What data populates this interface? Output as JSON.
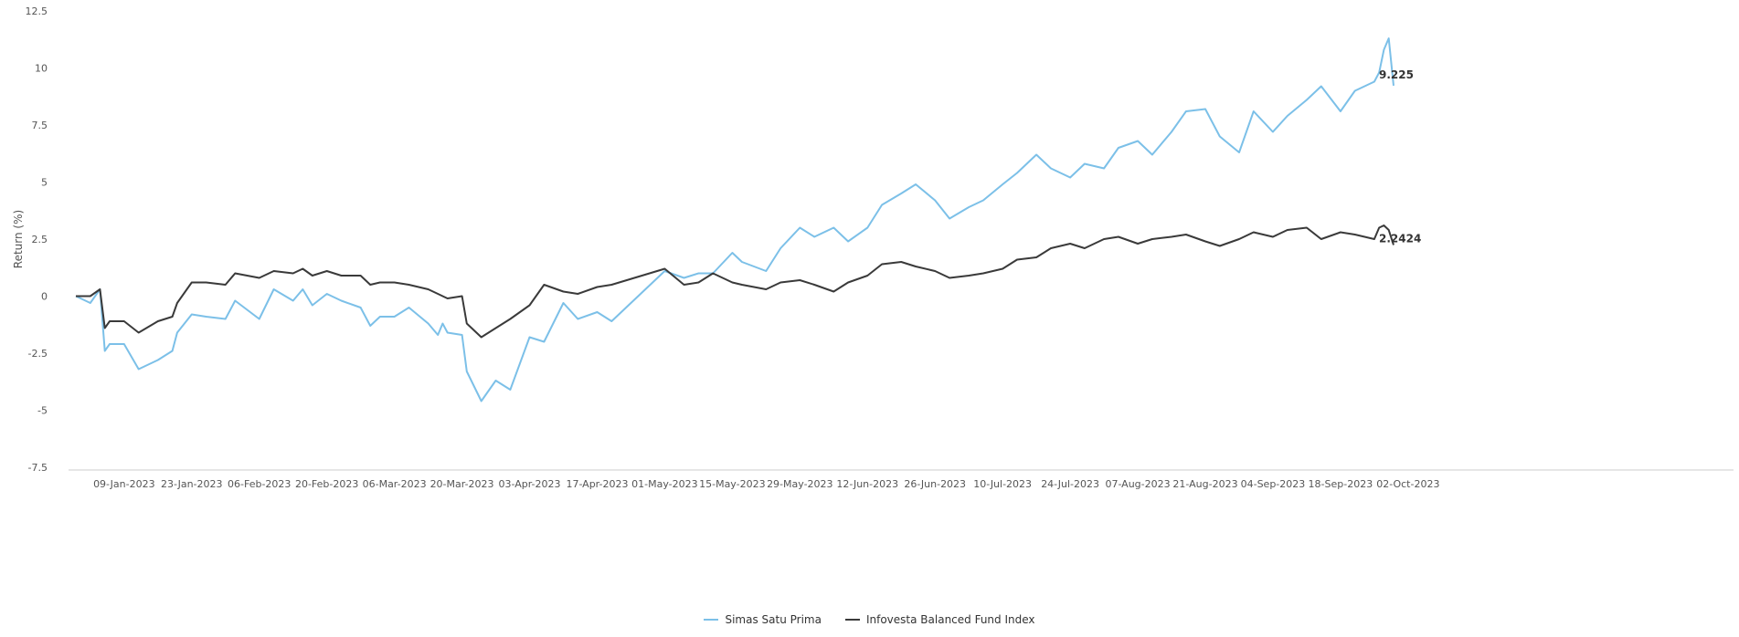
{
  "chart_data": {
    "type": "line",
    "title": "",
    "ylabel": "Return (%)",
    "xlabel": "",
    "ylim": [
      -7.5,
      12.5
    ],
    "yticks": [
      12.5,
      10,
      7.5,
      5,
      2.5,
      0,
      -2.5,
      -5,
      -7.5
    ],
    "ytick_labels": [
      "12.5",
      "10",
      "7.5",
      "5",
      "2.5",
      "0",
      "-2.5",
      "-5",
      "-7.5"
    ],
    "x_tick_labels": [
      "09-Jan-2023",
      "23-Jan-2023",
      "06-Feb-2023",
      "20-Feb-2023",
      "06-Mar-2023",
      "20-Mar-2023",
      "03-Apr-2023",
      "17-Apr-2023",
      "01-May-2023",
      "15-May-2023",
      "29-May-2023",
      "12-Jun-2023",
      "26-Jun-2023",
      "10-Jul-2023",
      "24-Jul-2023",
      "07-Aug-2023",
      "21-Aug-2023",
      "04-Sep-2023",
      "18-Sep-2023",
      "02-Oct-2023"
    ],
    "grid": false,
    "legend_position": "bottom-center",
    "x": [
      "2022-12-30",
      "2023-01-02",
      "2023-01-04",
      "2023-01-05",
      "2023-01-06",
      "2023-01-09",
      "2023-01-12",
      "2023-01-16",
      "2023-01-19",
      "2023-01-20",
      "2023-01-23",
      "2023-01-26",
      "2023-01-30",
      "2023-02-01",
      "2023-02-06",
      "2023-02-09",
      "2023-02-13",
      "2023-02-15",
      "2023-02-17",
      "2023-02-20",
      "2023-02-23",
      "2023-02-27",
      "2023-03-01",
      "2023-03-03",
      "2023-03-06",
      "2023-03-09",
      "2023-03-13",
      "2023-03-15",
      "2023-03-16",
      "2023-03-17",
      "2023-03-20",
      "2023-03-21",
      "2023-03-24",
      "2023-03-27",
      "2023-03-30",
      "2023-04-03",
      "2023-04-06",
      "2023-04-10",
      "2023-04-13",
      "2023-04-17",
      "2023-04-20",
      "2023-05-01",
      "2023-05-05",
      "2023-05-08",
      "2023-05-11",
      "2023-05-15",
      "2023-05-17",
      "2023-05-22",
      "2023-05-25",
      "2023-05-29",
      "2023-06-01",
      "2023-06-05",
      "2023-06-08",
      "2023-06-12",
      "2023-06-15",
      "2023-06-19",
      "2023-06-22",
      "2023-06-26",
      "2023-06-29",
      "2023-07-03",
      "2023-07-06",
      "2023-07-10",
      "2023-07-13",
      "2023-07-17",
      "2023-07-20",
      "2023-07-24",
      "2023-07-27",
      "2023-07-31",
      "2023-08-03",
      "2023-08-07",
      "2023-08-10",
      "2023-08-14",
      "2023-08-17",
      "2023-08-21",
      "2023-08-24",
      "2023-08-28",
      "2023-08-31",
      "2023-09-04",
      "2023-09-07",
      "2023-09-11",
      "2023-09-14",
      "2023-09-18",
      "2023-09-21",
      "2023-09-25",
      "2023-09-26",
      "2023-09-27",
      "2023-09-28",
      "2023-09-29"
    ],
    "series": [
      {
        "name": "Simas Satu Prima",
        "color": "#7cc0e8",
        "end_label": "9.225",
        "values": [
          0,
          -0.3,
          0.3,
          -2.4,
          -2.1,
          -2.1,
          -3.2,
          -2.8,
          -2.4,
          -1.6,
          -0.8,
          -0.9,
          -1.0,
          -0.2,
          -1.0,
          0.3,
          -0.2,
          0.3,
          -0.4,
          0.1,
          -0.2,
          -0.5,
          -1.3,
          -0.9,
          -0.9,
          -0.5,
          -1.2,
          -1.7,
          -1.2,
          -1.6,
          -1.7,
          -3.3,
          -4.6,
          -3.7,
          -4.1,
          -1.8,
          -2.0,
          -0.3,
          -1.0,
          -0.7,
          -1.1,
          1.1,
          0.8,
          1.0,
          1.0,
          1.9,
          1.5,
          1.1,
          2.1,
          3.0,
          2.6,
          3.0,
          2.4,
          3.0,
          4.0,
          4.5,
          4.9,
          4.2,
          3.4,
          3.9,
          4.2,
          4.9,
          5.4,
          6.2,
          5.6,
          5.2,
          5.8,
          5.6,
          6.5,
          6.8,
          6.2,
          7.2,
          8.1,
          8.2,
          7.0,
          6.3,
          8.1,
          7.2,
          7.9,
          8.6,
          9.2,
          8.1,
          9.0,
          9.4,
          9.8,
          10.8,
          11.3,
          9.225
        ]
      },
      {
        "name": "Infovesta Balanced Fund Index",
        "color": "#3a3a3a",
        "end_label": "2.2424",
        "values": [
          0,
          0,
          0.3,
          -1.4,
          -1.1,
          -1.1,
          -1.6,
          -1.1,
          -0.9,
          -0.3,
          0.6,
          0.6,
          0.5,
          1.0,
          0.8,
          1.1,
          1.0,
          1.2,
          0.9,
          1.1,
          0.9,
          0.9,
          0.5,
          0.6,
          0.6,
          0.5,
          0.3,
          0.1,
          0.0,
          -0.1,
          0.0,
          -1.2,
          -1.8,
          -1.4,
          -1.0,
          -0.4,
          0.5,
          0.2,
          0.1,
          0.4,
          0.5,
          1.2,
          0.5,
          0.6,
          1.0,
          0.6,
          0.5,
          0.3,
          0.6,
          0.7,
          0.5,
          0.2,
          0.6,
          0.9,
          1.4,
          1.5,
          1.3,
          1.1,
          0.8,
          0.9,
          1.0,
          1.2,
          1.6,
          1.7,
          2.1,
          2.3,
          2.1,
          2.5,
          2.6,
          2.3,
          2.5,
          2.6,
          2.7,
          2.4,
          2.2,
          2.5,
          2.8,
          2.6,
          2.9,
          3.0,
          2.5,
          2.8,
          2.7,
          2.5,
          3.0,
          3.1,
          2.9,
          2.2424
        ]
      }
    ]
  }
}
